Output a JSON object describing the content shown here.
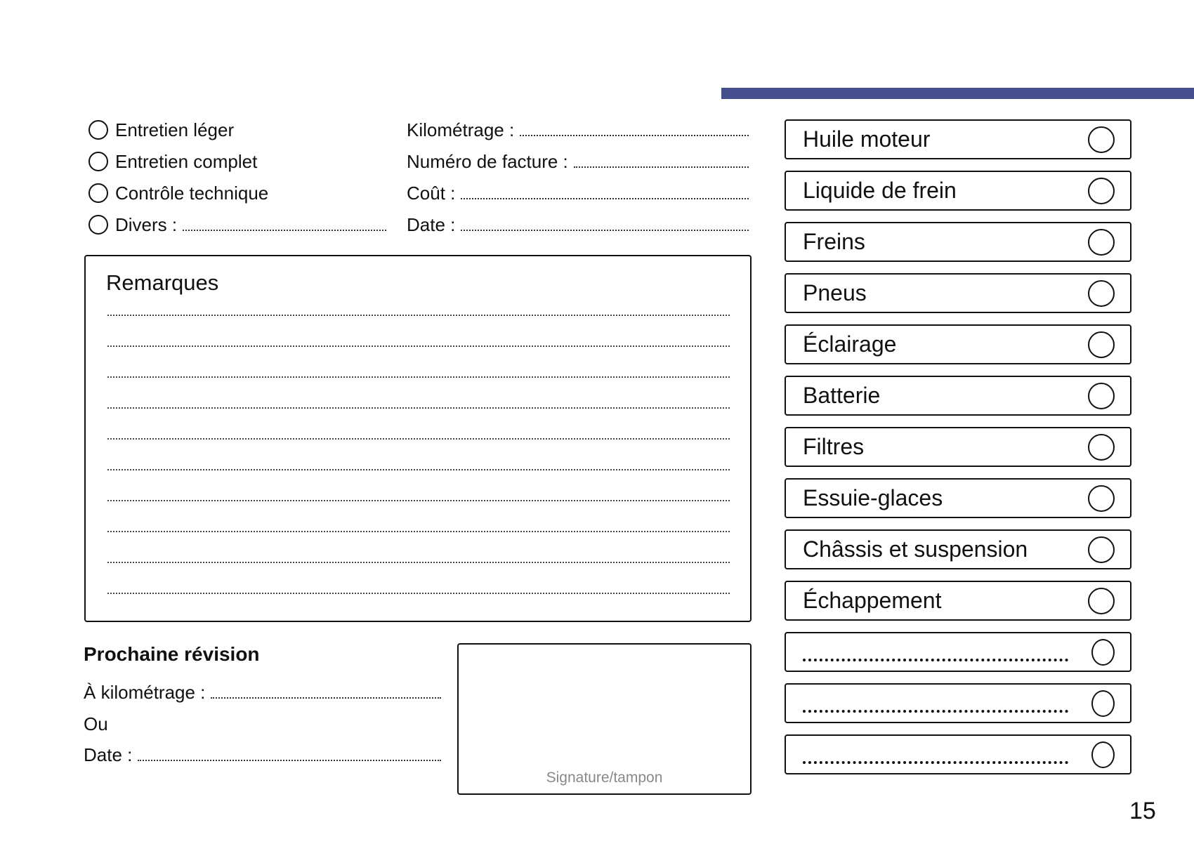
{
  "header": {
    "accent_color": "#454f8e"
  },
  "service_types": [
    {
      "label": "Entretien léger",
      "has_fill": false
    },
    {
      "label": "Entretien complet",
      "has_fill": false
    },
    {
      "label": "Contrôle technique",
      "has_fill": false
    },
    {
      "label": "Divers :",
      "has_fill": true
    }
  ],
  "fields": [
    {
      "label": "Kilométrage :"
    },
    {
      "label": "Numéro de facture :"
    },
    {
      "label": "Coût :"
    },
    {
      "label": "Date :"
    }
  ],
  "remarks": {
    "title": "Remarques",
    "line_count": 10
  },
  "next_revision": {
    "title": "Prochaine révision",
    "km_label": "À kilométrage :",
    "or_label": "Ou",
    "date_label": "Date :"
  },
  "signature": {
    "label": "Signature/tampon"
  },
  "checklist": [
    {
      "label": "Huile moteur"
    },
    {
      "label": "Liquide de frein"
    },
    {
      "label": "Freins"
    },
    {
      "label": "Pneus"
    },
    {
      "label": "Éclairage"
    },
    {
      "label": "Batterie"
    },
    {
      "label": "Filtres"
    },
    {
      "label": "Essuie-glaces"
    },
    {
      "label": "Châssis et suspension"
    },
    {
      "label": "Échappement"
    },
    {
      "label": ""
    },
    {
      "label": ""
    },
    {
      "label": ""
    }
  ],
  "page_number": "15"
}
